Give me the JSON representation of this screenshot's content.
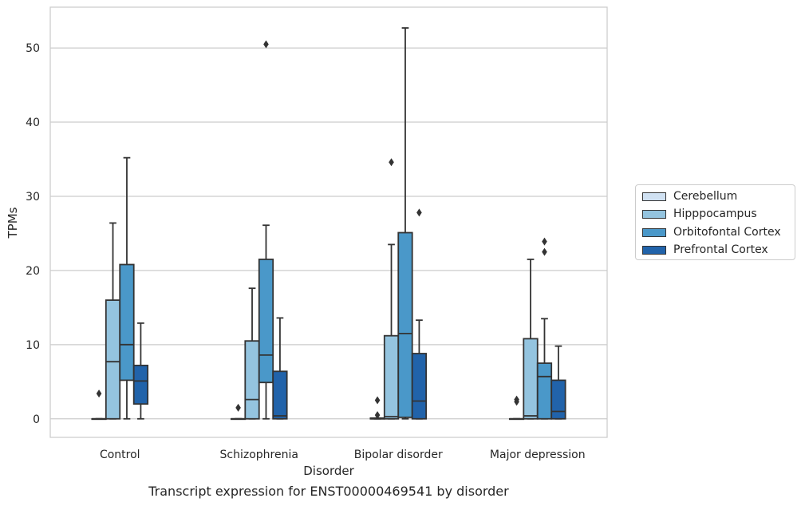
{
  "caption": "Transcript expression for ENST00000469541 by disorder",
  "chart_data": {
    "type": "box",
    "xlabel": "Disorder",
    "ylabel": "TPMs",
    "ylim": [
      -2.5,
      55.5
    ],
    "yticks": [
      0,
      10,
      20,
      30,
      40,
      50
    ],
    "grid": "horizontal",
    "legend_position": "right",
    "categories": [
      "Control",
      "Schizophrenia",
      "Bipolar disorder",
      "Major depression"
    ],
    "series": [
      {
        "name": "Cerebellum",
        "color": "#d0e1f2",
        "boxes": [
          {
            "whisker_low": 0,
            "q1": 0,
            "median": 0,
            "q3": 0,
            "whisker_high": 0,
            "outliers": [
              3.4
            ]
          },
          {
            "whisker_low": 0,
            "q1": 0,
            "median": 0,
            "q3": 0,
            "whisker_high": 0,
            "outliers": [
              1.5
            ]
          },
          {
            "whisker_low": 0,
            "q1": 0,
            "median": 0,
            "q3": 0.1,
            "whisker_high": 0.1,
            "outliers": [
              2.5,
              0.5
            ]
          },
          {
            "whisker_low": 0,
            "q1": 0,
            "median": 0,
            "q3": 0,
            "whisker_high": 0,
            "outliers": [
              2.6,
              2.3
            ]
          }
        ]
      },
      {
        "name": "Hipppocampus",
        "color": "#94c4df",
        "boxes": [
          {
            "whisker_low": 0,
            "q1": 0,
            "median": 7.7,
            "q3": 16.0,
            "whisker_high": 26.4,
            "outliers": []
          },
          {
            "whisker_low": 0,
            "q1": 0,
            "median": 2.6,
            "q3": 10.5,
            "whisker_high": 17.6,
            "outliers": []
          },
          {
            "whisker_low": 0,
            "q1": 0,
            "median": 0.3,
            "q3": 11.2,
            "whisker_high": 23.5,
            "outliers": [
              34.6
            ]
          },
          {
            "whisker_low": 0,
            "q1": 0,
            "median": 0.4,
            "q3": 10.8,
            "whisker_high": 21.5,
            "outliers": []
          }
        ]
      },
      {
        "name": "Orbitofontal Cortex",
        "color": "#4a98c9",
        "boxes": [
          {
            "whisker_low": 0,
            "q1": 5.2,
            "median": 10.0,
            "q3": 20.8,
            "whisker_high": 35.2,
            "outliers": []
          },
          {
            "whisker_low": 0,
            "q1": 4.9,
            "median": 8.6,
            "q3": 21.5,
            "whisker_high": 26.1,
            "outliers": [
              50.5
            ]
          },
          {
            "whisker_low": 0,
            "q1": 0.2,
            "median": 11.5,
            "q3": 25.1,
            "whisker_high": 52.7,
            "outliers": []
          },
          {
            "whisker_low": 0,
            "q1": 0,
            "median": 5.7,
            "q3": 7.5,
            "whisker_high": 13.5,
            "outliers": [
              23.9,
              22.5
            ]
          }
        ]
      },
      {
        "name": "Prefrontal Cortex",
        "color": "#2163aa",
        "boxes": [
          {
            "whisker_low": 0,
            "q1": 2.0,
            "median": 5.1,
            "q3": 7.2,
            "whisker_high": 12.9,
            "outliers": []
          },
          {
            "whisker_low": 0,
            "q1": 0,
            "median": 0.4,
            "q3": 6.4,
            "whisker_high": 13.6,
            "outliers": []
          },
          {
            "whisker_low": 0,
            "q1": 0,
            "median": 2.4,
            "q3": 8.8,
            "whisker_high": 13.3,
            "outliers": [
              27.8
            ]
          },
          {
            "whisker_low": 0,
            "q1": 0,
            "median": 1.0,
            "q3": 5.2,
            "whisker_high": 9.8,
            "outliers": []
          }
        ]
      }
    ]
  }
}
